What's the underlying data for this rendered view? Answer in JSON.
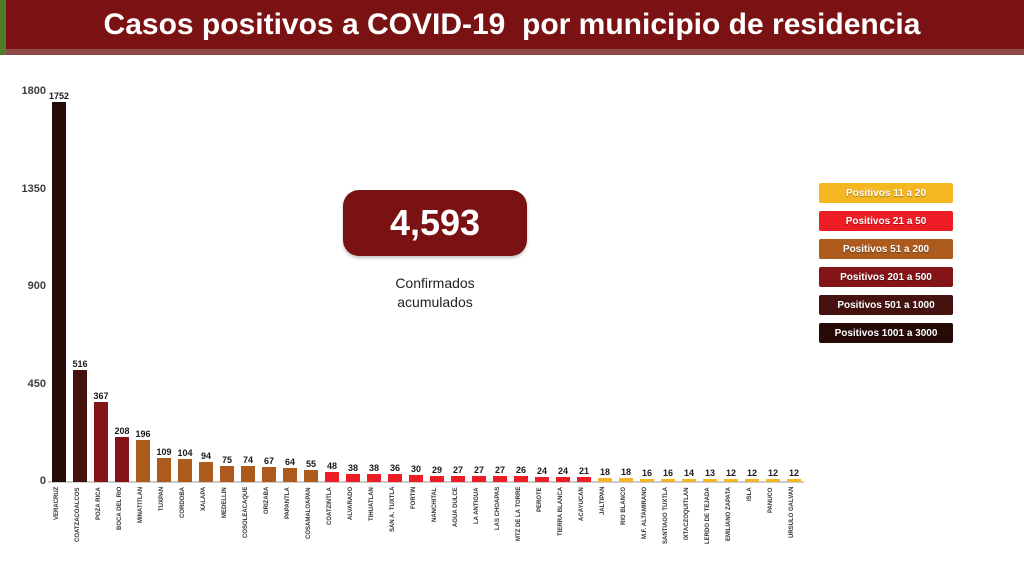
{
  "title": "Casos positivos a COVID-19  por municipio de residencia",
  "summary": {
    "value": "4,593",
    "caption_line1": "Confirmados",
    "caption_line2": "acumulados"
  },
  "legend": {
    "items": [
      {
        "label": "Positivos 11 a 20",
        "color": "#f4b722"
      },
      {
        "label": "Positivos 21 a 50",
        "color": "#ee1c24"
      },
      {
        "label": "Positivos 51 a 200",
        "color": "#ac5b1d"
      },
      {
        "label": "Positivos 201 a 500",
        "color": "#831417"
      },
      {
        "label": "Positivos 501 a 1000",
        "color": "#451210"
      },
      {
        "label": "Positivos 1001 a 3000",
        "color": "#260a08"
      }
    ]
  },
  "chart_data": {
    "type": "bar",
    "title": "Casos positivos a COVID-19 por municipio de residencia",
    "xlabel": "",
    "ylabel": "",
    "ylim": [
      0,
      1800
    ],
    "yticks": [
      0,
      450,
      900,
      1350,
      1800
    ],
    "grid": false,
    "legend_position": "right",
    "categories": [
      "VERACRUZ",
      "COATZACOALCOS",
      "POZA RICA",
      "BOCA DEL RIO",
      "MINATITLAN",
      "TUXPAN",
      "CORDOBA",
      "XALAPA",
      "MEDELLIN",
      "COSOLEACAQUE",
      "ORIZABA",
      "PAPANTLA",
      "COSAMALOAPAN",
      "COATZINTLA",
      "ALVARADO",
      "TIHUATLAN",
      "SAN A. TUXTLA",
      "FORTIN",
      "NANCHITAL",
      "AGUA DULCE",
      "LA ANTIGUA",
      "LAS CHOAPAS",
      "MTZ DE LA TORRE",
      "PEROTE",
      "TIERRA BLANCA",
      "ACAYUCAN",
      "JALTIPAN",
      "RIO BLANCO",
      "M.F. ALTAMIRANO",
      "SANTIAGO TUXTLA",
      "IXTACZOQUITLAN",
      "LERDO DE TEJADA",
      "EMILIANO ZAPATA",
      "ISLA",
      "PANUCO",
      "URSULO GALVAN"
    ],
    "values": [
      1752,
      516,
      367,
      208,
      196,
      109,
      104,
      94,
      75,
      74,
      67,
      64,
      55,
      48,
      38,
      38,
      36,
      30,
      29,
      27,
      27,
      27,
      26,
      24,
      24,
      21,
      18,
      18,
      16,
      16,
      14,
      13,
      12,
      12,
      12,
      12
    ],
    "color_scale": [
      {
        "min": 1001,
        "color": "#260a08"
      },
      {
        "min": 501,
        "color": "#451210"
      },
      {
        "min": 201,
        "color": "#831417"
      },
      {
        "min": 51,
        "color": "#ac5b1d"
      },
      {
        "min": 21,
        "color": "#ee1c24"
      },
      {
        "min": 11,
        "color": "#f4b722"
      }
    ]
  },
  "colors": {
    "banner": "#7a1113",
    "banner_bottom_edge": "#8e4a46",
    "green_strip": "#4f7d2a",
    "summary_box": "#7a1113",
    "baseline": "#cccccc"
  }
}
